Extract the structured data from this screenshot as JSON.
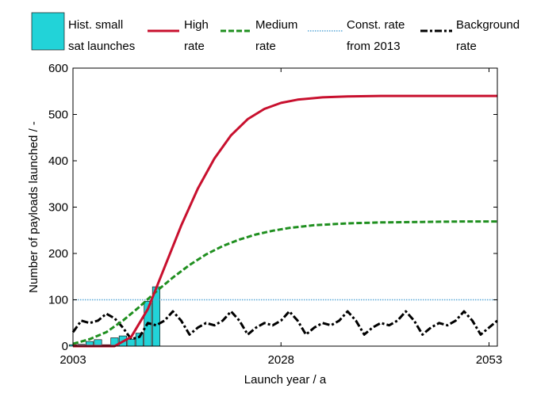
{
  "chart_data": {
    "type": "line",
    "title": "",
    "xlabel": "Launch year / a",
    "ylabel": "Number of payloads launched / -",
    "xlim": [
      2003,
      2054
    ],
    "ylim": [
      0,
      600
    ],
    "xticks": [
      2003,
      2028,
      2053
    ],
    "yticks": [
      0,
      100,
      200,
      300,
      400,
      500,
      600
    ],
    "grid": false,
    "legend_placement": "top",
    "legend": [
      {
        "key": "hist",
        "lines": [
          "Hist. small",
          "sat launches"
        ],
        "color": "#22d3d8",
        "style": "bar"
      },
      {
        "key": "high",
        "lines": [
          "High",
          "rate"
        ],
        "color": "#c8102e",
        "style": "solid"
      },
      {
        "key": "medium",
        "lines": [
          "Medium",
          "rate"
        ],
        "color": "#1f8f1f",
        "style": "dashed"
      },
      {
        "key": "const",
        "lines": [
          "Const. rate",
          "from 2013"
        ],
        "color": "#5aa8d8",
        "style": "dotted"
      },
      {
        "key": "background",
        "lines": [
          "Background",
          "rate"
        ],
        "color": "#000000",
        "style": "dashdot"
      }
    ],
    "bars": {
      "name": "Hist. small sat launches",
      "color": "#22d3d8",
      "x": [
        2003,
        2004,
        2005,
        2006,
        2007,
        2008,
        2009,
        2010,
        2011,
        2012,
        2013
      ],
      "values": [
        3,
        4,
        10,
        14,
        3,
        18,
        22,
        15,
        28,
        97,
        128
      ]
    },
    "series": [
      {
        "name": "High rate",
        "key": "high",
        "color": "#c8102e",
        "x": [
          2003,
          2006,
          2008,
          2010,
          2012,
          2014,
          2016,
          2018,
          2020,
          2022,
          2024,
          2026,
          2028,
          2030,
          2033,
          2036,
          2040,
          2045,
          2050,
          2054
        ],
        "values": [
          0,
          0,
          0,
          20,
          80,
          170,
          260,
          340,
          405,
          455,
          490,
          512,
          525,
          532,
          537,
          539,
          540,
          540,
          540,
          540
        ]
      },
      {
        "name": "Medium rate",
        "key": "medium",
        "color": "#1f8f1f",
        "x": [
          2003,
          2005,
          2007,
          2009,
          2011,
          2013,
          2015,
          2017,
          2019,
          2021,
          2023,
          2025,
          2027,
          2029,
          2032,
          2036,
          2040,
          2045,
          2050,
          2054
        ],
        "values": [
          5,
          15,
          30,
          55,
          85,
          118,
          148,
          175,
          198,
          216,
          230,
          241,
          249,
          255,
          261,
          265,
          267,
          268,
          269,
          269
        ]
      },
      {
        "name": "Const. rate from 2013",
        "key": "const",
        "color": "#5aa8d8",
        "x": [
          2003,
          2054
        ],
        "values": [
          100,
          100
        ]
      },
      {
        "name": "Background rate",
        "key": "background",
        "color": "#000000",
        "x": [
          2003,
          2004,
          2005,
          2006,
          2007,
          2008,
          2009,
          2010,
          2011,
          2012,
          2013,
          2014,
          2015,
          2016,
          2017,
          2018,
          2019,
          2020,
          2021,
          2022,
          2023,
          2024,
          2025,
          2026,
          2027,
          2028,
          2029,
          2030,
          2031,
          2032,
          2033,
          2034,
          2035,
          2036,
          2037,
          2038,
          2039,
          2040,
          2041,
          2042,
          2043,
          2044,
          2045,
          2046,
          2047,
          2048,
          2049,
          2050,
          2051,
          2052,
          2053,
          2054
        ],
        "values": [
          30,
          55,
          50,
          55,
          70,
          60,
          40,
          15,
          20,
          50,
          45,
          55,
          75,
          55,
          25,
          40,
          50,
          45,
          55,
          75,
          55,
          25,
          40,
          50,
          45,
          55,
          75,
          55,
          25,
          40,
          50,
          45,
          55,
          75,
          55,
          25,
          40,
          50,
          45,
          55,
          75,
          55,
          25,
          40,
          50,
          45,
          55,
          75,
          55,
          25,
          40,
          55
        ]
      }
    ]
  }
}
